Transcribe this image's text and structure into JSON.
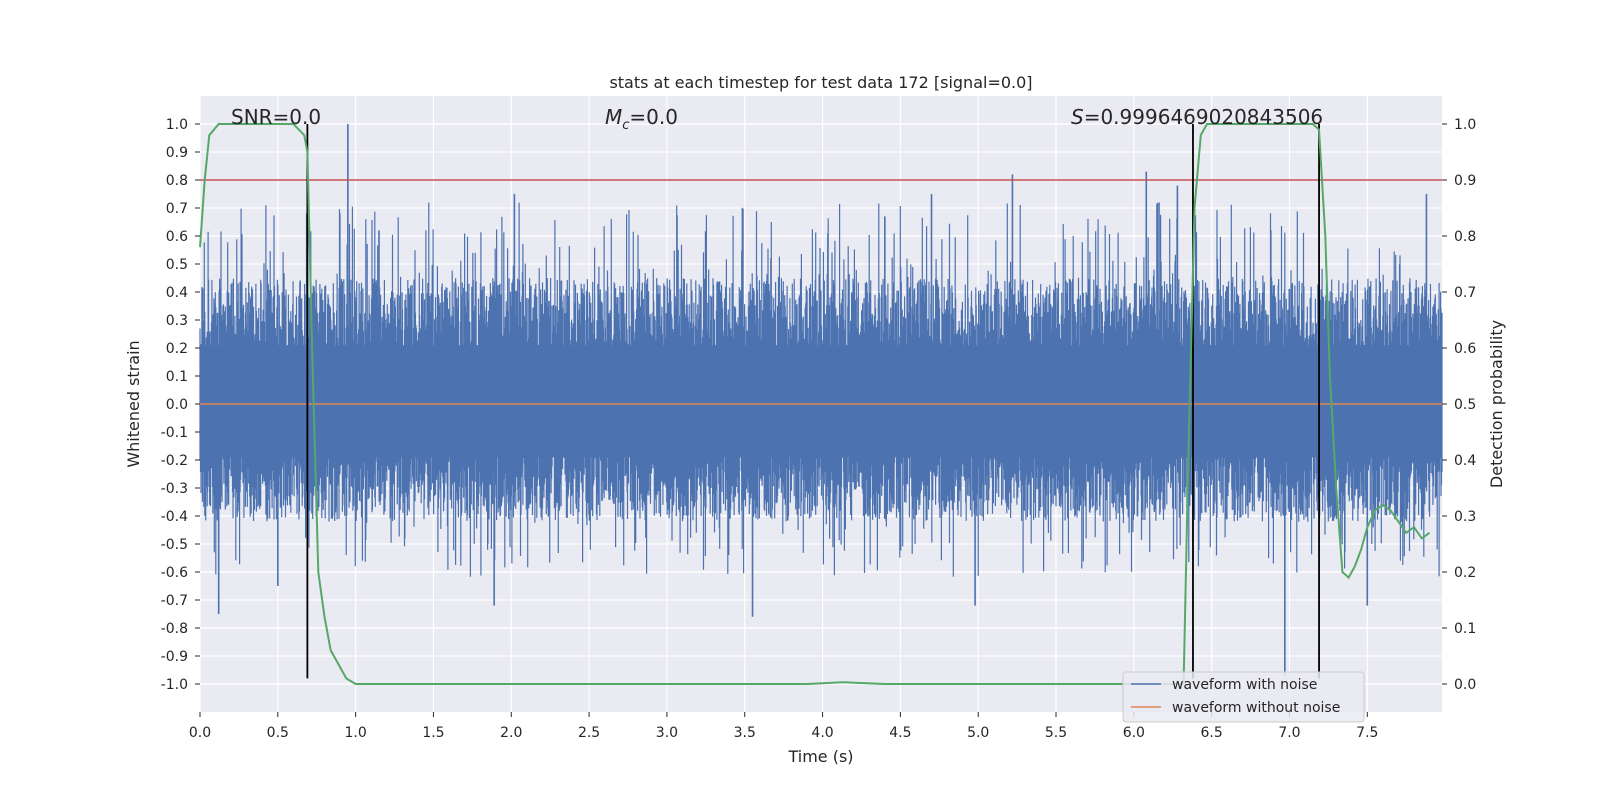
{
  "chart_data": {
    "type": "line",
    "title": "stats at each timestep for test data 172 [signal=0.0]",
    "xlabel": "Time (s)",
    "ylabel": "Whitened strain",
    "y2label": "Detection probability",
    "xlim": [
      0.0,
      7.98
    ],
    "ylim": [
      -1.1,
      1.1
    ],
    "y2lim": [
      -0.05,
      1.05
    ],
    "xticks": [
      "0.0",
      "0.5",
      "1.0",
      "1.5",
      "2.0",
      "2.5",
      "3.0",
      "3.5",
      "4.0",
      "4.5",
      "5.0",
      "5.5",
      "6.0",
      "6.5",
      "7.0",
      "7.5"
    ],
    "yticks": [
      "1.0",
      "0.9",
      "0.8",
      "0.7",
      "0.6",
      "0.5",
      "0.4",
      "0.3",
      "0.2",
      "0.1",
      "0.0",
      "-0.1",
      "-0.2",
      "-0.3",
      "-0.4",
      "-0.5",
      "-0.6",
      "-0.7",
      "-0.8",
      "-0.9",
      "-1.0"
    ],
    "y2ticks": [
      "1.0",
      "0.9",
      "0.8",
      "0.7",
      "0.6",
      "0.5",
      "0.4",
      "0.3",
      "0.2",
      "0.1",
      "0.0"
    ],
    "grid": true,
    "annotations": {
      "snr": "SNR=0.0",
      "mc_symbol": "M",
      "mc_sub": "c",
      "mc_value": "=0.0",
      "s_symbol": "S",
      "s_value": "=0.9996469020843506"
    },
    "threshold": {
      "value": 0.9,
      "axis": "right",
      "color": "#c44e52"
    },
    "vertical_lines": [
      0.69,
      6.38,
      7.19
    ],
    "legend": {
      "position": "lower-right",
      "entries": [
        "waveform with noise",
        "waveform without noise"
      ]
    },
    "series": [
      {
        "name": "waveform with noise",
        "color": "#4c72b0",
        "style": "dense noise",
        "typical_upper": 0.45,
        "typical_lower": -0.42,
        "peaks": [
          {
            "x": 0.12,
            "y": -0.75
          },
          {
            "x": 0.5,
            "y": -0.65
          },
          {
            "x": 0.69,
            "y": 0.8
          },
          {
            "x": 0.95,
            "y": 1.0
          },
          {
            "x": 1.15,
            "y": 0.62
          },
          {
            "x": 2.02,
            "y": 0.75
          },
          {
            "x": 1.89,
            "y": -0.72
          },
          {
            "x": 3.55,
            "y": -0.76
          },
          {
            "x": 4.4,
            "y": 0.67
          },
          {
            "x": 4.7,
            "y": 0.75
          },
          {
            "x": 5.22,
            "y": 0.82
          },
          {
            "x": 4.98,
            "y": -0.72
          },
          {
            "x": 6.08,
            "y": 0.83
          },
          {
            "x": 6.28,
            "y": 0.78
          },
          {
            "x": 6.97,
            "y": -0.97
          },
          {
            "x": 7.5,
            "y": -0.72
          },
          {
            "x": 7.88,
            "y": 0.75
          }
        ]
      },
      {
        "name": "waveform without noise",
        "color": "#dd8452",
        "x": [
          0.0,
          7.98
        ],
        "values": [
          0.0,
          0.0
        ]
      },
      {
        "name": "detection probability",
        "color": "#55a868",
        "axis": "right",
        "x": [
          0.0,
          0.03,
          0.06,
          0.12,
          0.6,
          0.67,
          0.69,
          0.72,
          0.76,
          0.8,
          0.84,
          0.88,
          0.94,
          1.0,
          1.05,
          2.0,
          3.0,
          3.9,
          4.13,
          4.4,
          5.0,
          6.0,
          6.32,
          6.35,
          6.39,
          6.43,
          6.47,
          7.15,
          7.19,
          7.23,
          7.26,
          7.3,
          7.34,
          7.38,
          7.42,
          7.46,
          7.5,
          7.55,
          7.6,
          7.65,
          7.7,
          7.75,
          7.8,
          7.85,
          7.9
        ],
        "values": [
          0.78,
          0.9,
          0.98,
          1.0,
          1.0,
          0.98,
          0.95,
          0.6,
          0.2,
          0.12,
          0.06,
          0.04,
          0.01,
          0.0,
          0.0,
          0.0,
          0.0,
          0.0,
          0.003,
          0.0,
          0.0,
          0.0,
          0.0,
          0.4,
          0.85,
          0.98,
          1.0,
          1.0,
          0.99,
          0.8,
          0.55,
          0.35,
          0.2,
          0.19,
          0.21,
          0.24,
          0.28,
          0.31,
          0.32,
          0.31,
          0.29,
          0.27,
          0.28,
          0.26,
          0.27
        ]
      }
    ]
  }
}
